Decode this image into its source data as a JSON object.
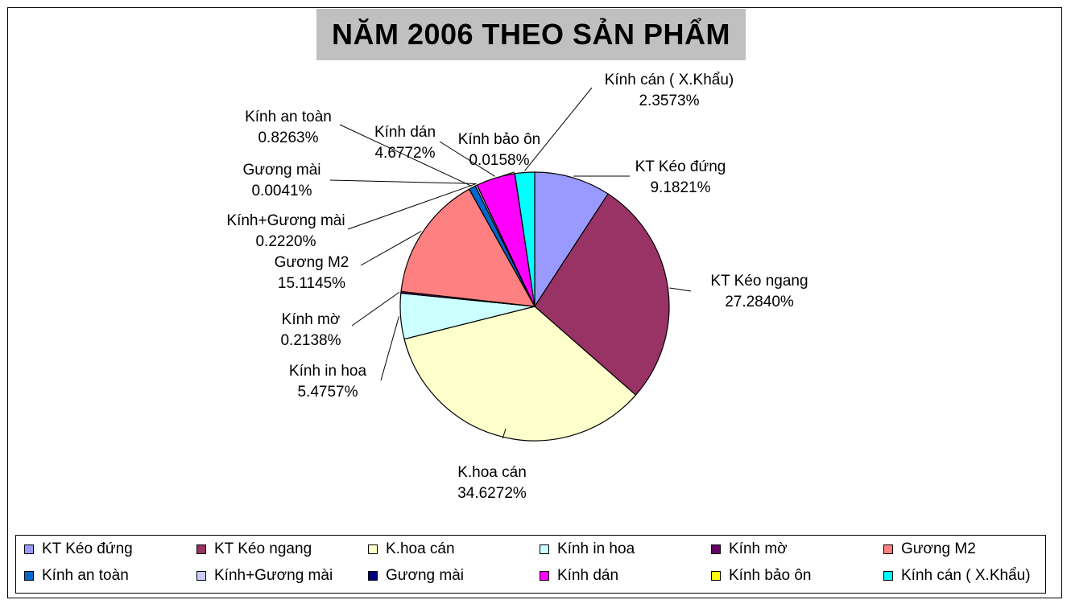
{
  "chart_data": {
    "type": "pie",
    "title": "NĂM 2006 THEO SẢN PHẨM",
    "slices": [
      {
        "name": "KT Kéo đứng",
        "value": 9.1821,
        "label": "9.1821%",
        "color": "#9999ff"
      },
      {
        "name": "KT Kéo ngang",
        "value": 27.284,
        "label": "27.2840%",
        "color": "#993366"
      },
      {
        "name": "K.hoa cán",
        "value": 34.6272,
        "label": "34.6272%",
        "color": "#ffffcc"
      },
      {
        "name": "Kính in hoa",
        "value": 5.4757,
        "label": "5.4757%",
        "color": "#ccffff"
      },
      {
        "name": "Kính mờ",
        "value": 0.2138,
        "label": "0.2138%",
        "color": "#660066"
      },
      {
        "name": "Gương M2",
        "value": 15.1145,
        "label": "15.1145%",
        "color": "#ff8080"
      },
      {
        "name": "Kính an toàn",
        "value": 0.8263,
        "label": "0.8263%",
        "color": "#0066cc"
      },
      {
        "name": "Kính+Gương mài",
        "value": 0.222,
        "label": "0.2220%",
        "color": "#ccccff"
      },
      {
        "name": "Gương mài",
        "value": 0.0041,
        "label": "0.0041%",
        "color": "#000080"
      },
      {
        "name": "Kính dán",
        "value": 4.6772,
        "label": "4.6772%",
        "color": "#ff00ff"
      },
      {
        "name": "Kính bảo ôn",
        "value": 0.0158,
        "label": "0.0158%",
        "color": "#ffff00"
      },
      {
        "name": "Kính cán ( X.Khẩu)",
        "value": 2.3573,
        "label": "2.3573%",
        "color": "#00ffff"
      }
    ],
    "legend": "bottom"
  }
}
